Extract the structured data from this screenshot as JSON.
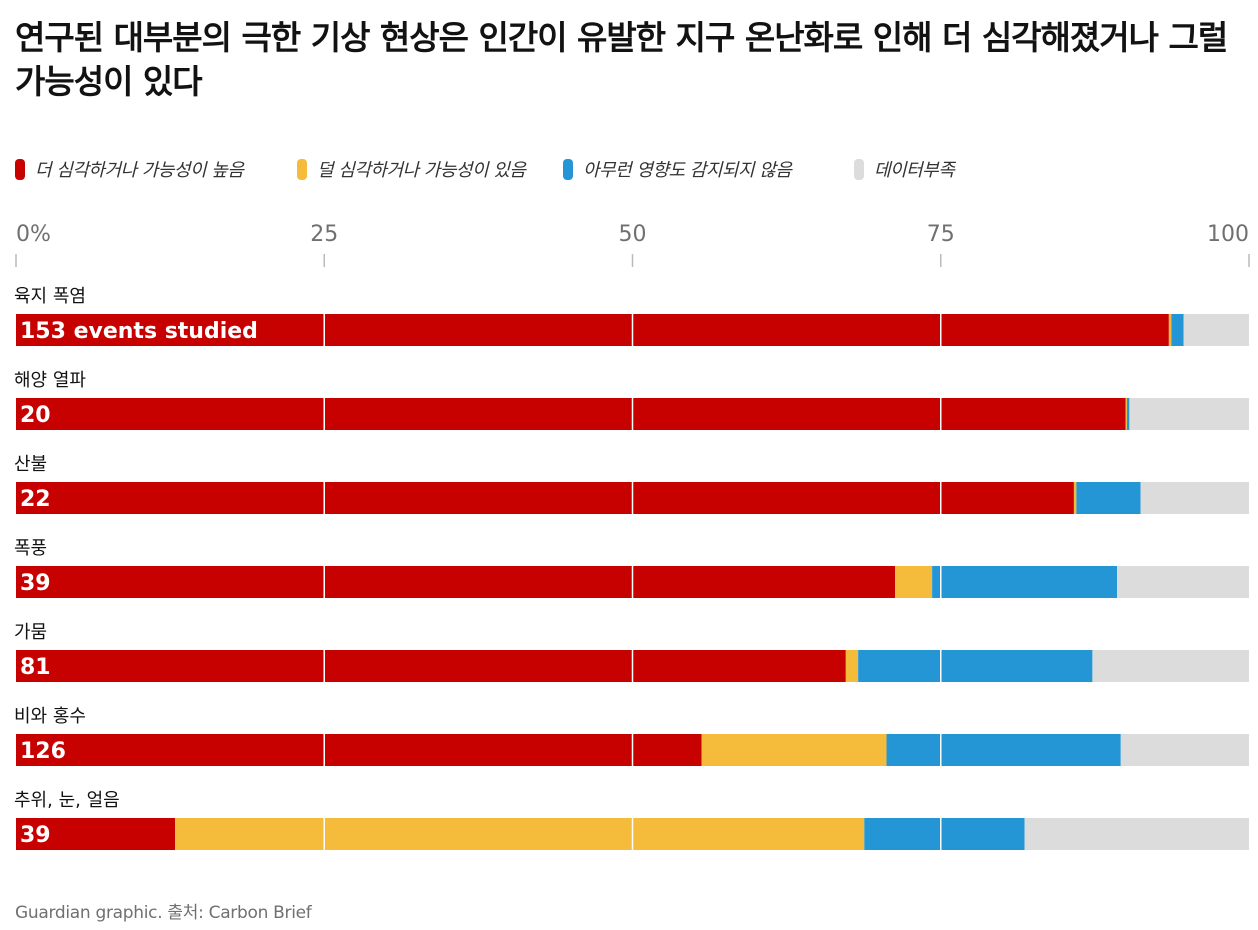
{
  "title": "연구된 대부분의 극한 기상 현상은 인간이 유발한 지구 온난화로 인해 더 심각해졌거나 그럴 가능성이 있다",
  "source": "Guardian graphic. 출처: Carbon Brief",
  "colors": {
    "more": "#c70000",
    "less": "#f5bc3c",
    "none": "#2496d6",
    "insufficient": "#dcdcdc",
    "grid": "#ffffff",
    "tick": "#bbbbbb"
  },
  "legend": [
    {
      "key": "more",
      "label": "더 심각하거나 가능성이 높음"
    },
    {
      "key": "less",
      "label": "덜 심각하거나 가능성이 있음"
    },
    {
      "key": "none",
      "label": "아무런 영향도 감지되지 않음"
    },
    {
      "key": "insufficient",
      "label": "데이터부족"
    }
  ],
  "chart_data": {
    "type": "bar",
    "orientation": "horizontal",
    "stacked": true,
    "xlim": [
      0,
      100
    ],
    "ticks": [
      0,
      25,
      50,
      75,
      100
    ],
    "tick_labels": [
      "0%",
      "25",
      "50",
      "75",
      "100"
    ],
    "categories": [
      "육지 폭염",
      "해양 열파",
      "산불",
      "폭풍",
      "가뭄",
      "비와 홍수",
      "추위, 눈, 얼음"
    ],
    "counts": [
      "153 events studied",
      "20",
      "22",
      "39",
      "81",
      "126",
      "39"
    ],
    "series": [
      {
        "name": "더 심각하거나 가능성이 높음",
        "key": "more",
        "values": [
          93.5,
          90,
          85.8,
          71.3,
          67.3,
          55.6,
          12.9
        ]
      },
      {
        "name": "덜 심각하거나 가능성이 있음",
        "key": "less",
        "values": [
          0.2,
          0.1,
          0.2,
          3.0,
          1.0,
          15.0,
          55.9
        ]
      },
      {
        "name": "아무런 영향도 감지되지 않음",
        "key": "none",
        "values": [
          1.0,
          0.2,
          5.2,
          15.0,
          19.0,
          19.0,
          13.0
        ]
      },
      {
        "name": "데이터부족",
        "key": "insufficient",
        "values": [
          5.3,
          9.7,
          8.8,
          10.7,
          12.7,
          10.4,
          18.2
        ]
      }
    ]
  }
}
